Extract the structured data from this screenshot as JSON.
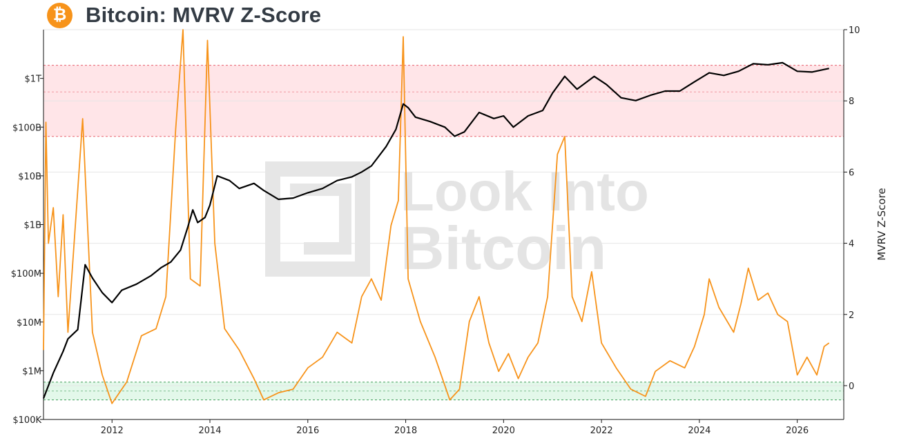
{
  "header": {
    "logo_icon": "bitcoin-icon",
    "logo_glyph": "₿",
    "logo_color": "#f7931a",
    "title": "Bitcoin: MVRV Z-Score"
  },
  "watermark": {
    "line1": "Look Into",
    "line2": "Bitcoin"
  },
  "chart_data": {
    "type": "line",
    "title": "Bitcoin: MVRV Z-Score",
    "xlabel": "",
    "ylabel_left": "",
    "ylabel_right": "MVRV Z-Score",
    "x_ticks": [
      "2012",
      "2014",
      "2016",
      "2018",
      "2020",
      "2022",
      "2024",
      "2026"
    ],
    "x_range": [
      2010.6,
      2026.95
    ],
    "y_left_scale": "log",
    "y_left_range": [
      100000,
      10000000000000
    ],
    "y_left_ticks": [
      {
        "value": 100000,
        "label": "$100K"
      },
      {
        "value": 1000000,
        "label": "$1M"
      },
      {
        "value": 10000000,
        "label": "$10M"
      },
      {
        "value": 100000000,
        "label": "$100M"
      },
      {
        "value": 1000000000,
        "label": "$1B"
      },
      {
        "value": 10000000000,
        "label": "$10B"
      },
      {
        "value": 100000000000,
        "label": "$100B"
      },
      {
        "value": 1000000000000,
        "label": "$1T"
      }
    ],
    "y_right_range": [
      -0.95,
      10
    ],
    "y_right_ticks": [
      0,
      2,
      4,
      6,
      8,
      10
    ],
    "grid": true,
    "zones": [
      {
        "name": "red",
        "y_from": 7.0,
        "y_to": 9.0,
        "line_at": 8.25,
        "fill": "#ffe5e8",
        "line_color": "#e8636f"
      },
      {
        "name": "green",
        "y_from": -0.4,
        "y_to": 0.1,
        "line_at": -0.15,
        "fill": "#e3f8ea",
        "line_color": "#3c9a55"
      }
    ],
    "series": [
      {
        "axis": "left",
        "color": "#000000",
        "points": [
          [
            2010.6,
            270000
          ],
          [
            2010.8,
            900000
          ],
          [
            2011.0,
            2500000
          ],
          [
            2011.1,
            4500000
          ],
          [
            2011.3,
            7000000
          ],
          [
            2011.45,
            150000000
          ],
          [
            2011.6,
            80000000
          ],
          [
            2011.8,
            40000000
          ],
          [
            2012.0,
            25000000
          ],
          [
            2012.2,
            45000000
          ],
          [
            2012.5,
            60000000
          ],
          [
            2012.8,
            90000000
          ],
          [
            2013.0,
            130000000
          ],
          [
            2013.2,
            170000000
          ],
          [
            2013.4,
            300000000
          ],
          [
            2013.55,
            900000000
          ],
          [
            2013.65,
            2000000000
          ],
          [
            2013.75,
            1100000000
          ],
          [
            2013.9,
            1400000000
          ],
          [
            2014.0,
            2500000000
          ],
          [
            2014.15,
            10000000000
          ],
          [
            2014.4,
            8000000000
          ],
          [
            2014.6,
            5500000000
          ],
          [
            2014.9,
            7000000000
          ],
          [
            2015.1,
            5000000000
          ],
          [
            2015.4,
            3300000000
          ],
          [
            2015.7,
            3500000000
          ],
          [
            2016.0,
            4500000000
          ],
          [
            2016.3,
            5500000000
          ],
          [
            2016.6,
            8000000000
          ],
          [
            2016.9,
            9500000000
          ],
          [
            2017.1,
            12000000000
          ],
          [
            2017.3,
            16000000000
          ],
          [
            2017.6,
            40000000000
          ],
          [
            2017.8,
            90000000000
          ],
          [
            2017.95,
            300000000000
          ],
          [
            2018.05,
            250000000000
          ],
          [
            2018.2,
            160000000000
          ],
          [
            2018.5,
            130000000000
          ],
          [
            2018.8,
            100000000000
          ],
          [
            2019.0,
            65000000000
          ],
          [
            2019.2,
            80000000000
          ],
          [
            2019.5,
            200000000000
          ],
          [
            2019.8,
            150000000000
          ],
          [
            2020.0,
            170000000000
          ],
          [
            2020.2,
            100000000000
          ],
          [
            2020.5,
            170000000000
          ],
          [
            2020.8,
            220000000000
          ],
          [
            2021.0,
            500000000000
          ],
          [
            2021.25,
            1100000000000
          ],
          [
            2021.5,
            600000000000
          ],
          [
            2021.85,
            1100000000000
          ],
          [
            2022.1,
            750000000000
          ],
          [
            2022.4,
            400000000000
          ],
          [
            2022.7,
            350000000000
          ],
          [
            2023.0,
            450000000000
          ],
          [
            2023.3,
            550000000000
          ],
          [
            2023.6,
            550000000000
          ],
          [
            2023.9,
            850000000000
          ],
          [
            2024.2,
            1300000000000
          ],
          [
            2024.5,
            1150000000000
          ],
          [
            2024.8,
            1400000000000
          ],
          [
            2025.1,
            2000000000000
          ],
          [
            2025.4,
            1900000000000
          ],
          [
            2025.7,
            2100000000000
          ],
          [
            2026.0,
            1400000000000
          ],
          [
            2026.3,
            1350000000000
          ],
          [
            2026.65,
            1600000000000
          ]
        ]
      },
      {
        "axis": "right",
        "color": "#f7931a",
        "points": [
          [
            2010.6,
            1.0
          ],
          [
            2010.65,
            7.4
          ],
          [
            2010.7,
            4.0
          ],
          [
            2010.8,
            5.0
          ],
          [
            2010.9,
            2.5
          ],
          [
            2011.0,
            4.8
          ],
          [
            2011.1,
            1.5
          ],
          [
            2011.25,
            4.5
          ],
          [
            2011.4,
            7.5
          ],
          [
            2011.6,
            1.5
          ],
          [
            2011.8,
            0.3
          ],
          [
            2012.0,
            -0.5
          ],
          [
            2012.3,
            0.1
          ],
          [
            2012.6,
            1.4
          ],
          [
            2012.9,
            1.6
          ],
          [
            2013.1,
            2.5
          ],
          [
            2013.3,
            7.2
          ],
          [
            2013.45,
            10.0
          ],
          [
            2013.6,
            3.0
          ],
          [
            2013.8,
            2.8
          ],
          [
            2013.95,
            9.7
          ],
          [
            2014.1,
            4.0
          ],
          [
            2014.3,
            1.6
          ],
          [
            2014.6,
            1.0
          ],
          [
            2014.9,
            0.2
          ],
          [
            2015.1,
            -0.4
          ],
          [
            2015.4,
            -0.2
          ],
          [
            2015.7,
            -0.1
          ],
          [
            2016.0,
            0.5
          ],
          [
            2016.3,
            0.8
          ],
          [
            2016.6,
            1.5
          ],
          [
            2016.9,
            1.2
          ],
          [
            2017.1,
            2.5
          ],
          [
            2017.3,
            3.0
          ],
          [
            2017.5,
            2.4
          ],
          [
            2017.7,
            4.5
          ],
          [
            2017.85,
            5.2
          ],
          [
            2017.95,
            9.8
          ],
          [
            2018.05,
            3.0
          ],
          [
            2018.3,
            1.8
          ],
          [
            2018.6,
            0.8
          ],
          [
            2018.9,
            -0.4
          ],
          [
            2019.1,
            -0.1
          ],
          [
            2019.3,
            1.8
          ],
          [
            2019.5,
            2.5
          ],
          [
            2019.7,
            1.2
          ],
          [
            2019.9,
            0.4
          ],
          [
            2020.1,
            0.9
          ],
          [
            2020.3,
            0.2
          ],
          [
            2020.5,
            0.8
          ],
          [
            2020.7,
            1.2
          ],
          [
            2020.9,
            2.5
          ],
          [
            2021.1,
            6.5
          ],
          [
            2021.25,
            7.0
          ],
          [
            2021.4,
            2.5
          ],
          [
            2021.6,
            1.8
          ],
          [
            2021.8,
            3.2
          ],
          [
            2022.0,
            1.2
          ],
          [
            2022.3,
            0.5
          ],
          [
            2022.6,
            -0.1
          ],
          [
            2022.9,
            -0.3
          ],
          [
            2023.1,
            0.4
          ],
          [
            2023.4,
            0.7
          ],
          [
            2023.7,
            0.5
          ],
          [
            2023.9,
            1.1
          ],
          [
            2024.1,
            2.0
          ],
          [
            2024.2,
            3.0
          ],
          [
            2024.4,
            2.2
          ],
          [
            2024.7,
            1.5
          ],
          [
            2024.85,
            2.3
          ],
          [
            2025.0,
            3.3
          ],
          [
            2025.2,
            2.4
          ],
          [
            2025.4,
            2.6
          ],
          [
            2025.6,
            2.0
          ],
          [
            2025.8,
            1.8
          ],
          [
            2026.0,
            0.3
          ],
          [
            2026.2,
            0.8
          ],
          [
            2026.4,
            0.3
          ],
          [
            2026.55,
            1.1
          ],
          [
            2026.65,
            1.2
          ]
        ]
      }
    ]
  }
}
